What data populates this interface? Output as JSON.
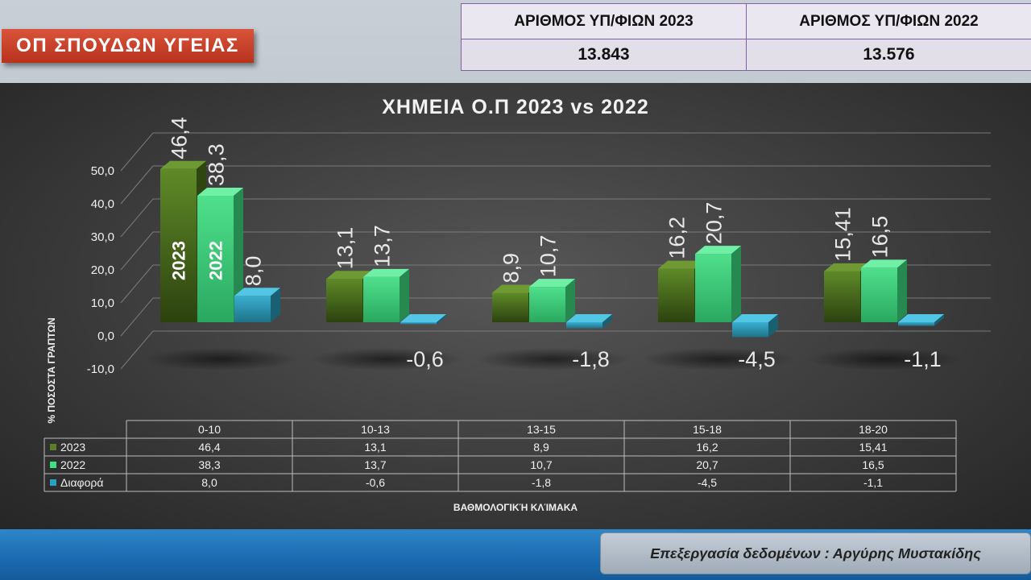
{
  "header": {
    "title": "ΟΠ ΣΠΟΥΔΩΝ ΥΓΕΙΑΣ",
    "stats": {
      "label_2023": "ΑΡΙΘΜΟΣ ΥΠ/ΦΙΩΝ 2023",
      "label_2022": "ΑΡΙΘΜΟΣ ΥΠ/ΦΙΩΝ 2022",
      "value_2023": "13.843",
      "value_2022": "13.576"
    }
  },
  "footer": {
    "credit": "Επεξεργασία δεδομένων : Αργύρης Μυστακίδης"
  },
  "colors": {
    "series_2023": "#4a6b1e",
    "series_2022": "#3bbf72",
    "series_diff": "#2a8fa6",
    "accent": "#c8402a"
  },
  "chart_data": {
    "type": "bar",
    "title": "ΧΗΜΕΙΑ Ο.Π 2023 vs 2022",
    "xlabel": "ΒΑΘΜΟΛΟΓΙΚΉ ΚΛΊΜΑΚΑ",
    "ylabel": "% ΠΟΣΟΣΤΑ ΓΡΑΠΤΩΝ",
    "ylim": [
      -10,
      50
    ],
    "yticks": [
      "-10,0",
      "0,0",
      "10,0",
      "20,0",
      "30,0",
      "40,0",
      "50,0"
    ],
    "categories": [
      "0-10",
      "10-13",
      "13-15",
      "15-18",
      "18-20"
    ],
    "series": [
      {
        "name": "2023",
        "values": [
          46.4,
          13.1,
          8.9,
          16.2,
          15.41
        ],
        "labels": [
          "46,4",
          "13,1",
          "8,9",
          "16,2",
          "15,41"
        ]
      },
      {
        "name": "2022",
        "values": [
          38.3,
          13.7,
          10.7,
          20.7,
          16.5
        ],
        "labels": [
          "38,3",
          "13,7",
          "10,7",
          "20,7",
          "16,5"
        ]
      },
      {
        "name": "Διαφορά",
        "values": [
          8.0,
          -0.6,
          -1.8,
          -4.5,
          -1.1
        ],
        "labels": [
          "8,0",
          "-0,6",
          "-1,8",
          "-4,5",
          "-1,1"
        ]
      }
    ],
    "bar_annotations": [
      "2023",
      "2022"
    ],
    "grid": true,
    "legend": "data-table"
  }
}
